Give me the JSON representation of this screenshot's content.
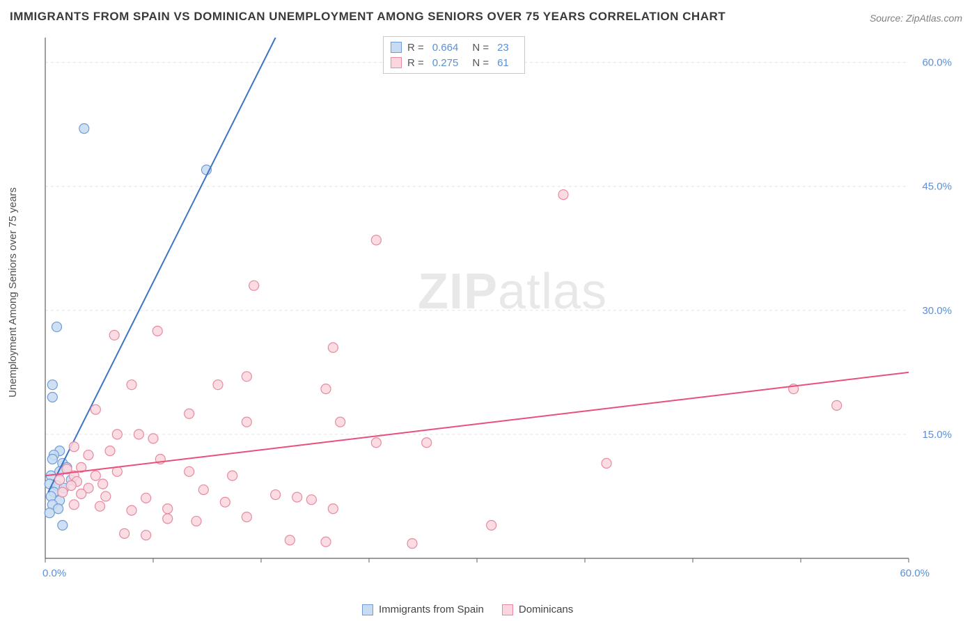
{
  "title": "IMMIGRANTS FROM SPAIN VS DOMINICAN UNEMPLOYMENT AMONG SENIORS OVER 75 YEARS CORRELATION CHART",
  "source": "Source: ZipAtlas.com",
  "watermark": {
    "bold": "ZIP",
    "light": "atlas"
  },
  "y_axis_label": "Unemployment Among Seniors over 75 years",
  "chart": {
    "type": "scatter-with-regression",
    "background_color": "#ffffff",
    "grid_color": "#e4e4e4",
    "axis_color": "#606060",
    "xlim": [
      0,
      60
    ],
    "ylim": [
      0,
      63
    ],
    "x_ticks": [
      0,
      7.5,
      15,
      22.5,
      30,
      37.5,
      45,
      52.5,
      60
    ],
    "x_tick_labels": {
      "0": "0.0%",
      "60": "60.0%"
    },
    "y_ticks": [
      15,
      30,
      45,
      60
    ],
    "y_tick_labels": {
      "15": "15.0%",
      "30": "30.0%",
      "45": "45.0%",
      "60": "60.0%"
    },
    "marker_radius": 7,
    "marker_stroke_width": 1.2,
    "line_width": 2,
    "series": [
      {
        "id": "spain",
        "label": "Immigrants from Spain",
        "fill": "#c7dbf2",
        "stroke": "#6f9cd4",
        "line_color": "#3b74c4",
        "R": "0.664",
        "N": "23",
        "regression": {
          "x1": 0.2,
          "y1": 8,
          "x2": 16,
          "y2": 63
        },
        "points": [
          [
            2.7,
            52
          ],
          [
            11.2,
            47
          ],
          [
            0.8,
            28
          ],
          [
            0.5,
            21
          ],
          [
            0.5,
            19.5
          ],
          [
            1.0,
            13
          ],
          [
            0.6,
            12.5
          ],
          [
            0.5,
            12
          ],
          [
            1.2,
            11.5
          ],
          [
            1.5,
            11
          ],
          [
            1.0,
            10.5
          ],
          [
            0.4,
            10
          ],
          [
            1.8,
            9.5
          ],
          [
            0.3,
            9
          ],
          [
            0.8,
            8.8
          ],
          [
            1.3,
            8.5
          ],
          [
            0.6,
            8
          ],
          [
            0.4,
            7.5
          ],
          [
            1.0,
            7
          ],
          [
            0.5,
            6.5
          ],
          [
            0.9,
            6
          ],
          [
            0.3,
            5.5
          ],
          [
            1.2,
            4
          ]
        ]
      },
      {
        "id": "dominicans",
        "label": "Dominicans",
        "fill": "#fbd6de",
        "stroke": "#e68aa0",
        "line_color": "#e94f7a",
        "R": "0.275",
        "N": "61",
        "regression": {
          "x1": 0,
          "y1": 10,
          "x2": 60,
          "y2": 22.5
        },
        "points": [
          [
            36,
            44
          ],
          [
            23,
            38.5
          ],
          [
            14.5,
            33
          ],
          [
            4.8,
            27
          ],
          [
            7.8,
            27.5
          ],
          [
            20,
            25.5
          ],
          [
            14,
            22
          ],
          [
            6,
            21
          ],
          [
            12,
            21
          ],
          [
            19.5,
            20.5
          ],
          [
            52,
            20.5
          ],
          [
            55,
            18.5
          ],
          [
            3.5,
            18
          ],
          [
            10,
            17.5
          ],
          [
            14,
            16.5
          ],
          [
            20.5,
            16.5
          ],
          [
            5,
            15
          ],
          [
            6.5,
            15
          ],
          [
            7.5,
            14.5
          ],
          [
            23,
            14
          ],
          [
            26.5,
            14
          ],
          [
            2,
            13.5
          ],
          [
            4.5,
            13
          ],
          [
            3,
            12.5
          ],
          [
            8,
            12
          ],
          [
            39,
            11.5
          ],
          [
            2.5,
            11
          ],
          [
            1.5,
            10.8
          ],
          [
            5,
            10.5
          ],
          [
            2,
            10
          ],
          [
            3.5,
            10
          ],
          [
            10,
            10.5
          ],
          [
            13,
            10
          ],
          [
            1,
            9.5
          ],
          [
            2.2,
            9.3
          ],
          [
            4,
            9
          ],
          [
            1.8,
            8.8
          ],
          [
            3,
            8.5
          ],
          [
            11,
            8.3
          ],
          [
            1.2,
            8
          ],
          [
            2.5,
            7.8
          ],
          [
            4.2,
            7.5
          ],
          [
            7,
            7.3
          ],
          [
            16,
            7.7
          ],
          [
            17.5,
            7.4
          ],
          [
            18.5,
            7.1
          ],
          [
            12.5,
            6.8
          ],
          [
            2,
            6.5
          ],
          [
            3.8,
            6.3
          ],
          [
            8.5,
            6
          ],
          [
            6,
            5.8
          ],
          [
            20,
            6
          ],
          [
            14,
            5
          ],
          [
            10.5,
            4.5
          ],
          [
            31,
            4
          ],
          [
            5.5,
            3
          ],
          [
            7,
            2.8
          ],
          [
            17,
            2.2
          ],
          [
            19.5,
            2
          ],
          [
            25.5,
            1.8
          ],
          [
            8.5,
            4.8
          ]
        ]
      }
    ]
  },
  "top_legend": [
    {
      "series_ref": 0
    },
    {
      "series_ref": 1
    }
  ],
  "bottom_legend": [
    {
      "series_ref": 0
    },
    {
      "series_ref": 1
    }
  ]
}
